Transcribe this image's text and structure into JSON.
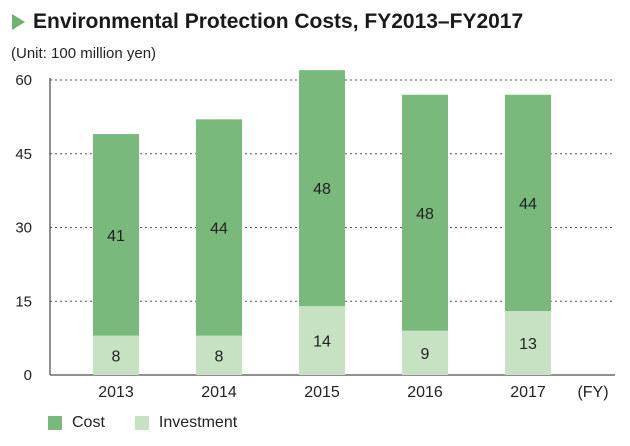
{
  "title": "Environmental Protection Costs, FY2013–FY2017",
  "unit_label": "(Unit: 100 million yen)",
  "colors": {
    "cost": "#79b97c",
    "investment": "#c7e1c3",
    "title_marker": "#6db26d",
    "gridline": "#555555",
    "axis": "#222222"
  },
  "chart_data": {
    "type": "bar",
    "stacked": true,
    "categories": [
      "2013",
      "2014",
      "2015",
      "2016",
      "2017"
    ],
    "x_unit_label": "(FY)",
    "series": [
      {
        "name": "Investment",
        "values": [
          8,
          8,
          14,
          9,
          13
        ]
      },
      {
        "name": "Cost",
        "values": [
          41,
          44,
          48,
          48,
          44
        ]
      }
    ],
    "ylim": [
      0,
      60
    ],
    "yticks": [
      0,
      15,
      30,
      45,
      60
    ],
    "grid": true,
    "data_labels": true,
    "legend_position": "bottom-left"
  }
}
